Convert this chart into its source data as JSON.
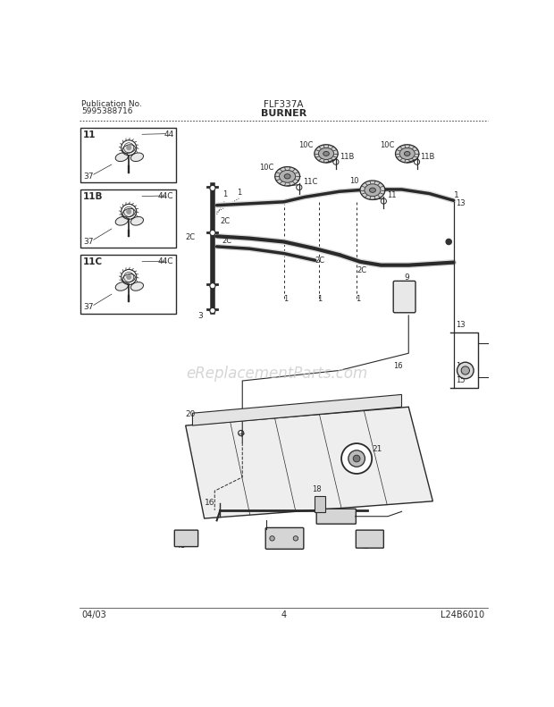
{
  "pub_no_label": "Publication No.",
  "pub_no_value": "5995388716",
  "model": "FLF337A",
  "section": "BURNER",
  "date": "04/03",
  "page": "4",
  "diagram_id": "L24B6010",
  "watermark": "eReplacementParts.com",
  "bg_color": "#ffffff",
  "line_color": "#2a2a2a",
  "fig_width": 6.2,
  "fig_height": 7.91,
  "dpi": 100
}
